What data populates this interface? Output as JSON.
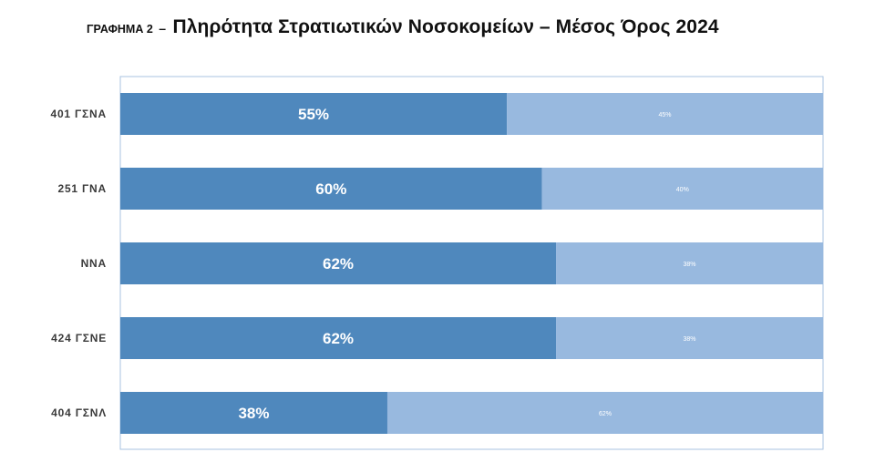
{
  "title": {
    "prefix": "ΓΡΑΦΗΜΑ 2",
    "separator": "–",
    "main": "Πληρότητα Στρατιωτικών Νοσοκομείων – Μέσος Όρος 2024"
  },
  "colors": {
    "filled": "#4f88bd",
    "remaining": "#98b9df",
    "frame": "#a9c3e0",
    "label_text": "#3a3a3a",
    "value_text": "#ffffff"
  },
  "chart_data": {
    "type": "bar",
    "orientation": "horizontal",
    "stacked": true,
    "percent_scale": true,
    "xlim": [
      0,
      100
    ],
    "categories": [
      "401 ΓΣΝΑ",
      "251 ΓΝΑ",
      "ΝΝΑ",
      "424 ΓΣΝΕ",
      "404 ΓΣΝΛ"
    ],
    "series": [
      {
        "values": [
          55,
          60,
          62,
          62,
          38
        ],
        "labels": [
          "55%",
          "60%",
          "62%",
          "62%",
          "38%"
        ],
        "color": "#4f88bd"
      },
      {
        "values": [
          45,
          40,
          38,
          38,
          62
        ],
        "labels": [
          "45%",
          "40%",
          "38%",
          "38%",
          "62%"
        ],
        "color": "#98b9df"
      }
    ],
    "legend": "none",
    "grid": false
  }
}
